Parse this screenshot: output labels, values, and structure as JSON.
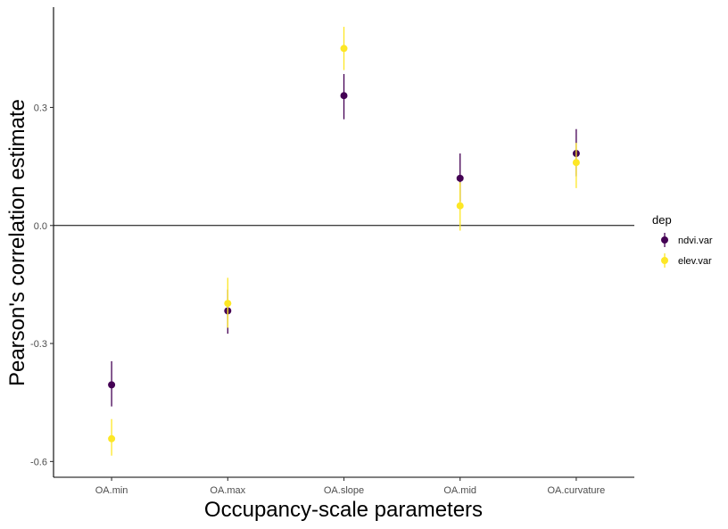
{
  "chart_data": {
    "type": "scatter",
    "xlabel": "Occupancy-scale parameters",
    "ylabel": "Pearson's correlation estimate",
    "categories": [
      "OA.min",
      "OA.max",
      "OA.slope",
      "OA.mid",
      "OA.curvature"
    ],
    "y_ticks": [
      -0.6,
      -0.3,
      0.0,
      0.3
    ],
    "y_tick_labels": [
      "-0.6",
      "-0.3",
      "0.0",
      "0.3"
    ],
    "ylim": [
      -0.64,
      0.555
    ],
    "reference_line_y": 0,
    "grid": false,
    "legend": {
      "title": "dep",
      "position": "right"
    },
    "series": [
      {
        "name": "ndvi.var",
        "color": "#440154",
        "estimates": [
          -0.405,
          -0.217,
          0.33,
          0.12,
          0.183
        ],
        "lower": [
          -0.46,
          -0.275,
          0.27,
          0.06,
          0.125
        ],
        "upper": [
          -0.345,
          -0.163,
          0.385,
          0.183,
          0.245
        ]
      },
      {
        "name": "elev.var",
        "color": "#fde725",
        "estimates": [
          -0.542,
          -0.198,
          0.45,
          0.05,
          0.16
        ],
        "lower": [
          -0.585,
          -0.26,
          0.395,
          -0.013,
          0.095
        ],
        "upper": [
          -0.492,
          -0.133,
          0.505,
          0.11,
          0.21
        ]
      }
    ]
  }
}
